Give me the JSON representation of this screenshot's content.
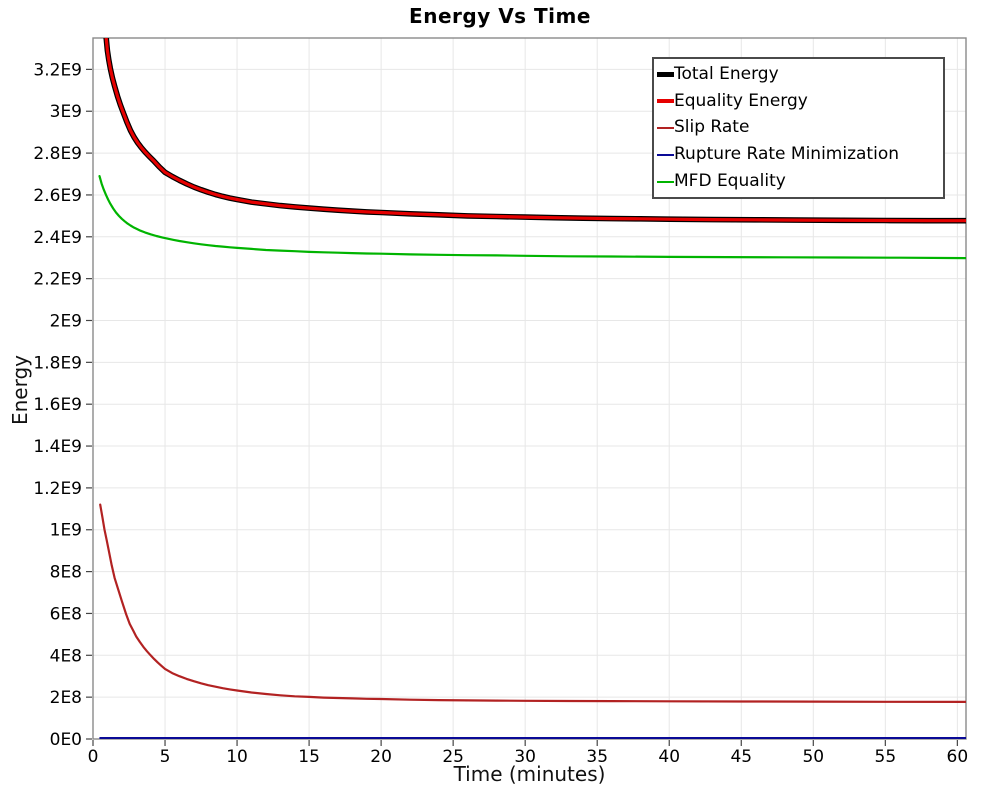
{
  "chart_data": {
    "type": "line",
    "title": "Energy Vs Time",
    "xlabel": "Time (minutes)",
    "ylabel": "Energy",
    "xlim": [
      0,
      60.6
    ],
    "ylim": [
      0,
      3350000000.0
    ],
    "grid": true,
    "legend_position": "top-right",
    "x_ticks": {
      "values": [
        0,
        5,
        10,
        15,
        20,
        25,
        30,
        35,
        40,
        45,
        50,
        55,
        60
      ],
      "labels": [
        "0",
        "5",
        "10",
        "15",
        "20",
        "25",
        "30",
        "35",
        "40",
        "45",
        "50",
        "55",
        "60"
      ]
    },
    "y_ticks": {
      "values": [
        0,
        200000000.0,
        400000000.0,
        600000000.0,
        800000000.0,
        1000000000.0,
        1200000000.0,
        1400000000.0,
        1600000000.0,
        1800000000.0,
        2000000000.0,
        2200000000.0,
        2400000000.0,
        2600000000.0,
        2800000000.0,
        3000000000.0,
        3200000000.0
      ],
      "labels": [
        "0E0",
        "2E8",
        "4E8",
        "6E8",
        "8E8",
        "1E9",
        "1.2E9",
        "1.4E9",
        "1.6E9",
        "1.8E9",
        "2E9",
        "2.2E9",
        "2.4E9",
        "2.6E9",
        "2.8E9",
        "3E9",
        "3.2E9"
      ]
    },
    "colors": {
      "grid": "#e7e7e7",
      "plot_border": "#8a8a8a",
      "tick": "#444444",
      "text": "#000000"
    },
    "series": [
      {
        "name": "Total Energy",
        "color": "#000000",
        "stroke_width": 5.6,
        "legend_marker_height": 5,
        "points": [
          [
            0.7,
            3560000000.0
          ],
          [
            0.8,
            3450000000.0
          ],
          [
            0.9,
            3360000000.0
          ],
          [
            1.0,
            3290000000.0
          ],
          [
            1.1,
            3245000000.0
          ],
          [
            1.2,
            3205000000.0
          ],
          [
            1.35,
            3160000000.0
          ],
          [
            1.5,
            3120000000.0
          ],
          [
            1.7,
            3072000000.0
          ],
          [
            1.9,
            3030000000.0
          ],
          [
            2.1,
            2993000000.0
          ],
          [
            2.35,
            2948000000.0
          ],
          [
            2.6,
            2908000000.0
          ],
          [
            2.85,
            2876000000.0
          ],
          [
            3.1,
            2849000000.0
          ],
          [
            3.35,
            2826000000.0
          ],
          [
            3.6,
            2806000000.0
          ],
          [
            3.9,
            2784000000.0
          ],
          [
            4.2,
            2764000000.0
          ],
          [
            4.6,
            2734000000.0
          ],
          [
            5.0,
            2708000000.0
          ],
          [
            5.5,
            2688000000.0
          ],
          [
            6.0,
            2670000000.0
          ],
          [
            6.5,
            2653000000.0
          ],
          [
            7.0,
            2638000000.0
          ],
          [
            7.5,
            2625000000.0
          ],
          [
            8.0,
            2613000000.0
          ],
          [
            8.5,
            2602000000.0
          ],
          [
            9.0,
            2593000000.0
          ],
          [
            9.5,
            2585000000.0
          ],
          [
            10,
            2578000000.0
          ],
          [
            11,
            2566000000.0
          ],
          [
            12,
            2557000000.0
          ],
          [
            13,
            2549000000.0
          ],
          [
            14,
            2543000000.0
          ],
          [
            15,
            2537000000.0
          ],
          [
            16,
            2532000000.0
          ],
          [
            17,
            2527000000.0
          ],
          [
            18,
            2523000000.0
          ],
          [
            19,
            2519000000.0
          ],
          [
            20,
            2516000000.0
          ],
          [
            22,
            2510000000.0
          ],
          [
            24,
            2505000000.0
          ],
          [
            26,
            2500000000.0
          ],
          [
            28,
            2497000000.0
          ],
          [
            30,
            2494000000.0
          ],
          [
            32,
            2491000000.0
          ],
          [
            34,
            2489000000.0
          ],
          [
            36,
            2487000000.0
          ],
          [
            38,
            2486000000.0
          ],
          [
            40,
            2484000000.0
          ],
          [
            43,
            2482000000.0
          ],
          [
            46,
            2481000000.0
          ],
          [
            49,
            2480000000.0
          ],
          [
            52,
            2479000000.0
          ],
          [
            55,
            2478000000.0
          ],
          [
            58,
            2477000000.0
          ],
          [
            60.6,
            2477000000.0
          ]
        ]
      },
      {
        "name": "Equality Energy",
        "color": "#e60000",
        "stroke_width": 3.2,
        "legend_marker_height": 4,
        "points": [
          [
            0.7,
            3560000000.0
          ],
          [
            0.8,
            3450000000.0
          ],
          [
            0.9,
            3360000000.0
          ],
          [
            1.0,
            3290000000.0
          ],
          [
            1.1,
            3245000000.0
          ],
          [
            1.2,
            3205000000.0
          ],
          [
            1.35,
            3160000000.0
          ],
          [
            1.5,
            3120000000.0
          ],
          [
            1.7,
            3072000000.0
          ],
          [
            1.9,
            3030000000.0
          ],
          [
            2.1,
            2993000000.0
          ],
          [
            2.35,
            2948000000.0
          ],
          [
            2.6,
            2908000000.0
          ],
          [
            2.85,
            2876000000.0
          ],
          [
            3.1,
            2849000000.0
          ],
          [
            3.35,
            2826000000.0
          ],
          [
            3.6,
            2806000000.0
          ],
          [
            3.9,
            2784000000.0
          ],
          [
            4.2,
            2764000000.0
          ],
          [
            4.6,
            2734000000.0
          ],
          [
            5.0,
            2708000000.0
          ],
          [
            5.5,
            2688000000.0
          ],
          [
            6.0,
            2670000000.0
          ],
          [
            6.5,
            2653000000.0
          ],
          [
            7.0,
            2638000000.0
          ],
          [
            7.5,
            2625000000.0
          ],
          [
            8.0,
            2613000000.0
          ],
          [
            8.5,
            2602000000.0
          ],
          [
            9.0,
            2593000000.0
          ],
          [
            9.5,
            2585000000.0
          ],
          [
            10,
            2578000000.0
          ],
          [
            11,
            2566000000.0
          ],
          [
            12,
            2557000000.0
          ],
          [
            13,
            2549000000.0
          ],
          [
            14,
            2543000000.0
          ],
          [
            15,
            2537000000.0
          ],
          [
            16,
            2532000000.0
          ],
          [
            17,
            2527000000.0
          ],
          [
            18,
            2523000000.0
          ],
          [
            19,
            2519000000.0
          ],
          [
            20,
            2516000000.0
          ],
          [
            22,
            2510000000.0
          ],
          [
            24,
            2505000000.0
          ],
          [
            26,
            2500000000.0
          ],
          [
            28,
            2497000000.0
          ],
          [
            30,
            2494000000.0
          ],
          [
            32,
            2491000000.0
          ],
          [
            34,
            2489000000.0
          ],
          [
            36,
            2487000000.0
          ],
          [
            38,
            2486000000.0
          ],
          [
            40,
            2484000000.0
          ],
          [
            43,
            2482000000.0
          ],
          [
            46,
            2481000000.0
          ],
          [
            49,
            2480000000.0
          ],
          [
            52,
            2479000000.0
          ],
          [
            55,
            2478000000.0
          ],
          [
            58,
            2477000000.0
          ],
          [
            60.6,
            2477000000.0
          ]
        ]
      },
      {
        "name": "Slip Rate",
        "color": "#b22222",
        "stroke_width": 2.2,
        "legend_marker_height": 2,
        "points": [
          [
            0.5,
            1120000000.0
          ],
          [
            0.65,
            1060000000.0
          ],
          [
            0.8,
            1000000000.0
          ],
          [
            0.95,
            950000000.0
          ],
          [
            1.1,
            900000000.0
          ],
          [
            1.3,
            830000000.0
          ],
          [
            1.5,
            770000000.0
          ],
          [
            1.75,
            715000000.0
          ],
          [
            2.0,
            660000000.0
          ],
          [
            2.3,
            597000000.0
          ],
          [
            2.55,
            550000000.0
          ],
          [
            2.8,
            517000000.0
          ],
          [
            3.0,
            490000000.0
          ],
          [
            3.25,
            464000000.0
          ],
          [
            3.5,
            440000000.0
          ],
          [
            3.75,
            419000000.0
          ],
          [
            4.0,
            400000000.0
          ],
          [
            4.25,
            382000000.0
          ],
          [
            4.5,
            365000000.0
          ],
          [
            4.75,
            350000000.0
          ],
          [
            5.0,
            335000000.0
          ],
          [
            5.5,
            315000000.0
          ],
          [
            6.0,
            300000000.0
          ],
          [
            6.5,
            287000000.0
          ],
          [
            7.0,
            276000000.0
          ],
          [
            7.5,
            266000000.0
          ],
          [
            8.0,
            257000000.0
          ],
          [
            8.5,
            250000000.0
          ],
          [
            9.0,
            243000000.0
          ],
          [
            9.5,
            237000000.0
          ],
          [
            10,
            232000000.0
          ],
          [
            11,
            222000000.0
          ],
          [
            12,
            215000000.0
          ],
          [
            13,
            209000000.0
          ],
          [
            14,
            204000000.0
          ],
          [
            15,
            201000000.0
          ],
          [
            16,
            198000000.0
          ],
          [
            17,
            196000000.0
          ],
          [
            18,
            194000000.0
          ],
          [
            19,
            192000000.0
          ],
          [
            20,
            191000000.0
          ],
          [
            22,
            188000000.0
          ],
          [
            24,
            186000000.0
          ],
          [
            26,
            184500000.0
          ],
          [
            28,
            183500000.0
          ],
          [
            30,
            182500000.0
          ],
          [
            33,
            181500000.0
          ],
          [
            36,
            181000000.0
          ],
          [
            40,
            180000000.0
          ],
          [
            45,
            179000000.0
          ],
          [
            50,
            178500000.0
          ],
          [
            55,
            178000000.0
          ],
          [
            60.6,
            177500000.0
          ]
        ]
      },
      {
        "name": "Rupture Rate Minimization",
        "color": "#0a0a96",
        "stroke_width": 2.0,
        "legend_marker_height": 2,
        "points": [
          [
            0.5,
            5000000.0
          ],
          [
            15,
            5000000.0
          ],
          [
            30,
            5000000.0
          ],
          [
            45,
            5000000.0
          ],
          [
            60.6,
            5000000.0
          ]
        ]
      },
      {
        "name": "MFD Equality",
        "color": "#00b400",
        "stroke_width": 2.2,
        "legend_marker_height": 2,
        "points": [
          [
            0.45,
            2690000000.0
          ],
          [
            0.6,
            2654000000.0
          ],
          [
            0.75,
            2625000000.0
          ],
          [
            0.9,
            2600000000.0
          ],
          [
            1.05,
            2578000000.0
          ],
          [
            1.2,
            2558000000.0
          ],
          [
            1.4,
            2535000000.0
          ],
          [
            1.6,
            2516000000.0
          ],
          [
            1.8,
            2500000000.0
          ],
          [
            2.0,
            2486000000.0
          ],
          [
            2.2,
            2474000000.0
          ],
          [
            2.4,
            2463000000.0
          ],
          [
            2.6,
            2454000000.0
          ],
          [
            2.8,
            2446000000.0
          ],
          [
            3.0,
            2439000000.0
          ],
          [
            3.3,
            2429000000.0
          ],
          [
            3.6,
            2421000000.0
          ],
          [
            4.0,
            2412000000.0
          ],
          [
            4.4,
            2404000000.0
          ],
          [
            4.8,
            2397000000.0
          ],
          [
            5.2,
            2391000000.0
          ],
          [
            5.6,
            2385000000.0
          ],
          [
            6.0,
            2380000000.0
          ],
          [
            6.5,
            2374000000.0
          ],
          [
            7.0,
            2369000000.0
          ],
          [
            7.5,
            2364000000.0
          ],
          [
            8.0,
            2360000000.0
          ],
          [
            8.5,
            2356000000.0
          ],
          [
            9.0,
            2353000000.0
          ],
          [
            9.5,
            2350000000.0
          ],
          [
            10,
            2347000000.0
          ],
          [
            11,
            2342000000.0
          ],
          [
            12,
            2337000000.0
          ],
          [
            13,
            2334000000.0
          ],
          [
            14,
            2331000000.0
          ],
          [
            15,
            2328000000.0
          ],
          [
            16,
            2326000000.0
          ],
          [
            17,
            2324000000.0
          ],
          [
            18,
            2322000000.0
          ],
          [
            19,
            2320000000.0
          ],
          [
            20,
            2319000000.0
          ],
          [
            22,
            2316000000.0
          ],
          [
            24,
            2314000000.0
          ],
          [
            26,
            2312000000.0
          ],
          [
            28,
            2311000000.0
          ],
          [
            30,
            2309000000.0
          ],
          [
            33,
            2307000000.0
          ],
          [
            36,
            2306000000.0
          ],
          [
            40,
            2304000000.0
          ],
          [
            44,
            2303000000.0
          ],
          [
            48,
            2302000000.0
          ],
          [
            52,
            2301000000.0
          ],
          [
            56,
            2300000000.0
          ],
          [
            60.6,
            2298000000.0
          ]
        ]
      }
    ]
  }
}
